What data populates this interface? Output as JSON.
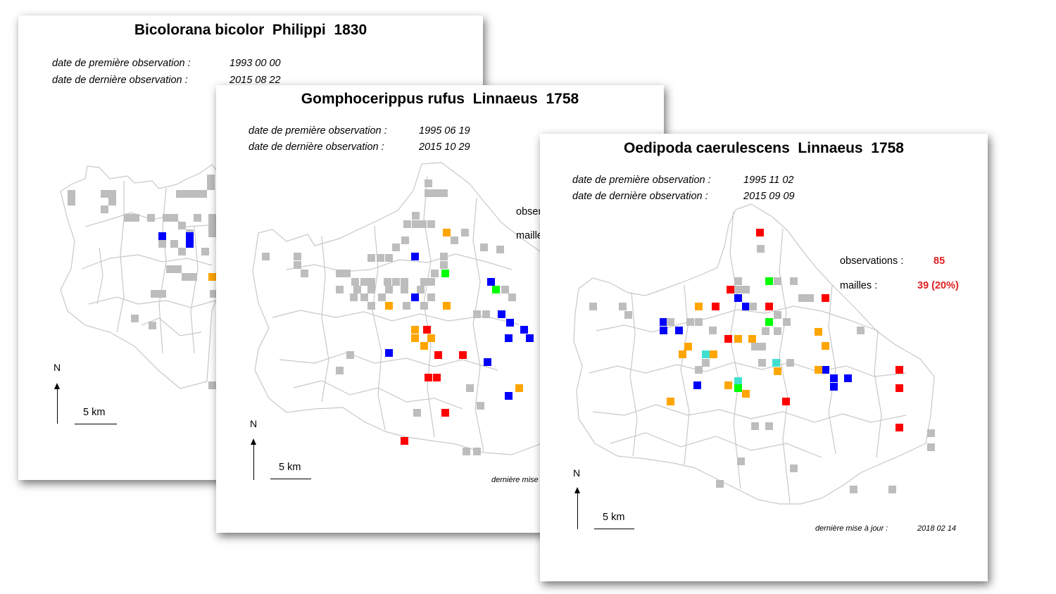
{
  "colors": {
    "grey": "#bdbdbd",
    "blue": "#0000ff",
    "red": "#ff0000",
    "orange": "#ffa500",
    "green": "#00ff00",
    "cyan": "#40e0d0",
    "border": "#c8c8c8"
  },
  "cards": [
    {
      "title": "Bicolorana bicolor  Philippi  1830",
      "first_label": "date de première observation :",
      "first_value": "1993 00 00",
      "last_label": "date de dernière observation :",
      "last_value": "2015 08 22",
      "north": "N",
      "scale": "5 km"
    },
    {
      "title": "Gomphocerippus rufus  Linnaeus  1758",
      "first_label": "date de première observation :",
      "first_value": "1995 06 19",
      "last_label": "date de dernière observation :",
      "last_value": "2015 10 29",
      "obs_partial": "obser",
      "mailles_partial": "maille",
      "north": "N",
      "scale": "5 km",
      "update_partial": "dernière mise"
    },
    {
      "title": "Oedipoda caerulescens  Linnaeus  1758",
      "first_label": "date de première observation :",
      "first_value": "1995 11 02",
      "last_label": "date de dernière observation :",
      "last_value": "2015 09 09",
      "obs_label": "observations :",
      "obs_value": "85",
      "mailles_label": "mailles :",
      "mailles_value": "39 (20%)",
      "north": "N",
      "scale": "5 km",
      "update_label": "dernière mise à jour :",
      "update_value": "2018 02 14"
    }
  ]
}
